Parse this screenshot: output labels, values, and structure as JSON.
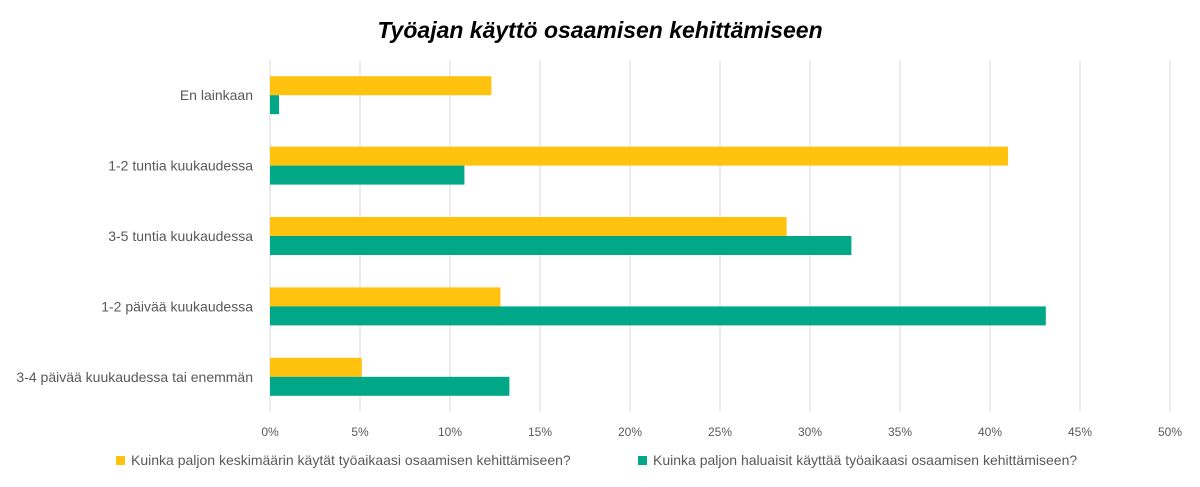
{
  "chart_data": {
    "type": "bar",
    "orientation": "horizontal",
    "title": "Työajan käyttö osaamisen kehittämiseen",
    "categories": [
      "En lainkaan",
      "1-2 tuntia kuukaudessa",
      "3-5 tuntia kuukaudessa",
      "1-2 päivää kuukaudessa",
      "3-4 päivää kuukaudessa tai enemmän"
    ],
    "series": [
      {
        "name": "Kuinka paljon keskimäärin käytät työaikaasi  osaamisen kehittämiseen?",
        "color": "#FFC20E",
        "values": [
          12.3,
          41.0,
          28.7,
          12.8,
          5.1
        ]
      },
      {
        "name": "Kuinka paljon haluaisit  käyttää työaikaasi osaamisen kehittämiseen?",
        "color": "#00A887",
        "values": [
          0.5,
          10.8,
          32.3,
          43.1,
          13.3
        ]
      }
    ],
    "x_ticks": [
      "0%",
      "5%",
      "10%",
      "15%",
      "20%",
      "25%",
      "30%",
      "35%",
      "40%",
      "45%",
      "50%"
    ],
    "xlim": [
      0,
      50
    ],
    "grid": true,
    "legend": "bottom",
    "gridline_color": "#D9D9D9"
  }
}
